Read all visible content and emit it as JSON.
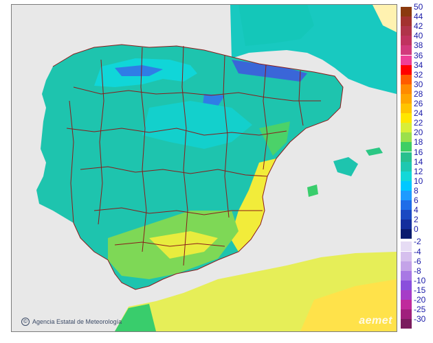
{
  "credit": {
    "text": "Agencia Estatal de Meteorología",
    "icon": "copyright-icon"
  },
  "brand": {
    "text": "aemet"
  },
  "legend": {
    "scale": [
      {
        "label": "50",
        "color": "#8b3a0e"
      },
      {
        "label": "44",
        "color": "#a3322f"
      },
      {
        "label": "42",
        "color": "#b0344a"
      },
      {
        "label": "40",
        "color": "#c0335f"
      },
      {
        "label": "38",
        "color": "#d23a7c"
      },
      {
        "label": "36",
        "color": "#ee3f97"
      },
      {
        "label": "34",
        "color": "#ff0000"
      },
      {
        "label": "32",
        "color": "#ff5a00"
      },
      {
        "label": "30",
        "color": "#ff8a00"
      },
      {
        "label": "28",
        "color": "#ffa500"
      },
      {
        "label": "26",
        "color": "#ffc400"
      },
      {
        "label": "24",
        "color": "#ffe600"
      },
      {
        "label": "22",
        "color": "#d8ee38"
      },
      {
        "label": "20",
        "color": "#9be04b"
      },
      {
        "label": "18",
        "color": "#3fce64"
      },
      {
        "label": "16",
        "color": "#28c08e"
      },
      {
        "label": "14",
        "color": "#1ec8b0"
      },
      {
        "label": "12",
        "color": "#13d8d8"
      },
      {
        "label": "10",
        "color": "#00c8ff"
      },
      {
        "label": "8",
        "color": "#1e9bff"
      },
      {
        "label": "6",
        "color": "#1e6ce8"
      },
      {
        "label": "4",
        "color": "#1a48c2"
      },
      {
        "label": "2",
        "color": "#142e9c"
      },
      {
        "label": "0",
        "color": "#0b1c6e"
      },
      {
        "label": "-2",
        "color": "#e6dcf4"
      },
      {
        "label": "-4",
        "color": "#d6c0ee"
      },
      {
        "label": "-6",
        "color": "#c4a3e8"
      },
      {
        "label": "-8",
        "color": "#a878e4"
      },
      {
        "label": "-10",
        "color": "#8a4fdc"
      },
      {
        "label": "-15",
        "color": "#a63cc8"
      },
      {
        "label": "-20",
        "color": "#c02a9c"
      },
      {
        "label": "-25",
        "color": "#a0207c"
      },
      {
        "label": "-30",
        "color": "#7a1c5e"
      }
    ]
  }
}
